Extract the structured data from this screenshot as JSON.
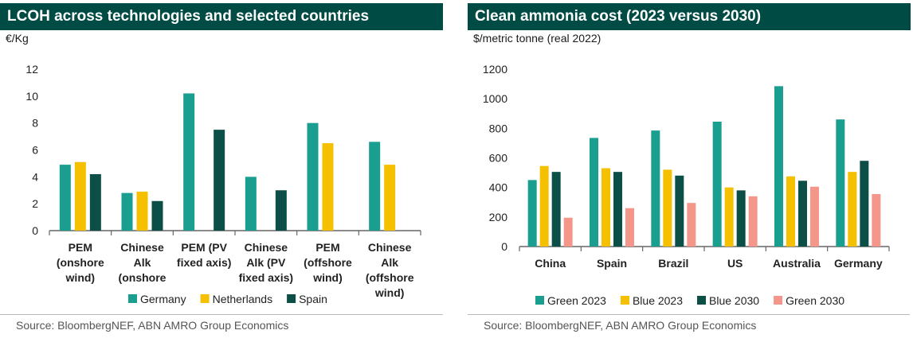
{
  "left": {
    "title": "LCOH across technologies and selected countries",
    "unit": "€/Kg",
    "source": "Source: BloombergNEF, ABN AMRO Group Economics"
  },
  "right": {
    "title": "Clean ammonia cost (2023 versus 2030)",
    "unit": "$/metric tonne (real 2022)",
    "source": "Source: BloombergNEF, ABN AMRO Group Economics"
  },
  "colors": {
    "teal": "#1a9e8f",
    "yellow": "#f5c000",
    "dark_green": "#0b4f47",
    "salmon": "#f4978a",
    "title_bg": "#004c45"
  },
  "chart_data": [
    {
      "type": "bar",
      "title": "LCOH across technologies and selected countries",
      "ylabel": "€/Kg",
      "xlabel": "",
      "ylim": [
        0,
        12
      ],
      "yticks": [
        0,
        2,
        4,
        6,
        8,
        10,
        12
      ],
      "grid": false,
      "legend": "bottom",
      "categories": [
        [
          "PEM",
          "(onshore",
          "wind)"
        ],
        [
          "Chinese",
          "Alk",
          "(onshore"
        ],
        [
          "PEM (PV",
          "fixed axis)"
        ],
        [
          "Chinese",
          "Alk (PV",
          "fixed axis)"
        ],
        [
          "PEM",
          "(offshore",
          "wind)"
        ],
        [
          "Chinese",
          "Alk",
          "(offshore",
          "wind)"
        ]
      ],
      "series": [
        {
          "name": "Germany",
          "color": "#1a9e8f",
          "values": [
            4.9,
            2.8,
            10.2,
            4.0,
            8.0,
            6.6
          ]
        },
        {
          "name": "Netherlands",
          "color": "#f5c000",
          "values": [
            5.1,
            2.9,
            null,
            null,
            6.5,
            4.9
          ]
        },
        {
          "name": "Spain",
          "color": "#0b4f47",
          "values": [
            4.2,
            2.2,
            7.5,
            3.0,
            null,
            null
          ]
        }
      ]
    },
    {
      "type": "bar",
      "title": "Clean ammonia cost (2023 versus 2030)",
      "ylabel": "$/metric tonne (real 2022)",
      "xlabel": "",
      "ylim": [
        0,
        1200
      ],
      "yticks": [
        0,
        200,
        400,
        600,
        800,
        1000,
        1200
      ],
      "grid": false,
      "legend": "bottom",
      "categories": [
        "China",
        "Spain",
        "Brazil",
        "US",
        "Australia",
        "Germany"
      ],
      "series": [
        {
          "name": "Green 2023",
          "color": "#1a9e8f",
          "values": [
            450,
            735,
            785,
            845,
            1085,
            860
          ]
        },
        {
          "name": "Blue 2023",
          "color": "#f5c000",
          "values": [
            545,
            530,
            520,
            400,
            475,
            505
          ]
        },
        {
          "name": "Blue 2030",
          "color": "#0b4f47",
          "values": [
            505,
            505,
            480,
            380,
            445,
            580
          ]
        },
        {
          "name": "Green 2030",
          "color": "#f4978a",
          "values": [
            195,
            260,
            295,
            340,
            405,
            355
          ]
        }
      ]
    }
  ]
}
